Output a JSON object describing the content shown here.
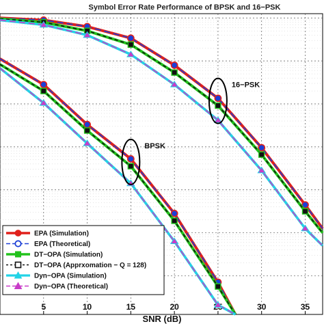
{
  "chart_data": {
    "type": "line",
    "title": "Symbol Error Rate Performance of BPSK and 16−PSK",
    "xlabel": "SNR (dB)",
    "ylabel": "",
    "xlim": [
      0,
      37
    ],
    "ylog": true,
    "ylim_log10": [
      -6.9,
      0.1
    ],
    "xticks": [
      5,
      10,
      15,
      20,
      25,
      30,
      35
    ],
    "grid": true,
    "legend_position": "bottom-left",
    "annotations": [
      {
        "text": "BPSK",
        "x": 15,
        "y_log10": -3.35
      },
      {
        "text": "16−PSK",
        "x": 25,
        "y_log10": -1.93
      }
    ],
    "colors": {
      "epa": "#e0201b",
      "epa_theory": "#1c3fd6",
      "dt_sim": "#22c21c",
      "dt_approx": "#111111",
      "dyn_sim": "#22d3e6",
      "dyn_theory": "#c83cc8"
    },
    "series": [
      {
        "name": "EPA (Simulation)",
        "style": "epa",
        "group": "16PSK",
        "x": [
          0,
          5,
          10,
          15,
          20,
          25,
          30,
          35,
          37
        ],
        "y_log10": [
          0.0,
          -0.05,
          -0.2,
          -0.47,
          -1.1,
          -1.87,
          -3.02,
          -4.35,
          -4.9
        ]
      },
      {
        "name": "EPA (Simulation)",
        "style": "epa",
        "group": "BPSK",
        "x": [
          0,
          5,
          10,
          15,
          20,
          25,
          27
        ],
        "y_log10": [
          -0.95,
          -1.55,
          -2.48,
          -3.28,
          -4.55,
          -6.15,
          -6.9
        ]
      },
      {
        "name": "DT−OPA (Simulation)",
        "style": "dt",
        "group": "16PSK",
        "x": [
          0,
          5,
          10,
          15,
          20,
          25,
          30,
          35,
          37
        ],
        "y_log10": [
          -0.02,
          -0.1,
          -0.3,
          -0.62,
          -1.27,
          -2.04,
          -3.18,
          -4.5,
          -5.0
        ]
      },
      {
        "name": "DT−OPA (Simulation)",
        "style": "dt",
        "group": "BPSK",
        "x": [
          0,
          5,
          10,
          15,
          20,
          25,
          27
        ],
        "y_log10": [
          -1.08,
          -1.7,
          -2.62,
          -3.45,
          -4.72,
          -6.25,
          -6.9
        ]
      },
      {
        "name": "Dyn−OPA (Simulation)",
        "style": "dyn",
        "group": "16PSK",
        "x": [
          0,
          5,
          10,
          15,
          20,
          25,
          30,
          35,
          37
        ],
        "y_log10": [
          -0.05,
          -0.16,
          -0.4,
          -0.85,
          -1.55,
          -2.38,
          -3.55,
          -4.9,
          -5.3
        ]
      },
      {
        "name": "Dyn−OPA (Simulation)",
        "style": "dyn",
        "group": "BPSK",
        "x": [
          0,
          5,
          10,
          15,
          20,
          25,
          27
        ],
        "y_log10": [
          -1.17,
          -1.98,
          -2.92,
          -3.85,
          -5.2,
          -6.68,
          -6.9
        ]
      }
    ],
    "legend": [
      {
        "label": "EPA (Simulation)",
        "style": "epa_sim"
      },
      {
        "label": "EPA (Theoretical)",
        "style": "epa_theory"
      },
      {
        "label": "DT−OPA (Simulation)",
        "style": "dt_sim"
      },
      {
        "label": "DT−OPA (Apprxomation − Q = 128)",
        "style": "dt_approx"
      },
      {
        "label": "Dyn−OPA (Simulation)",
        "style": "dyn_sim"
      },
      {
        "label": "Dyn−OPA (Theoretical)",
        "style": "dyn_theory"
      }
    ]
  }
}
